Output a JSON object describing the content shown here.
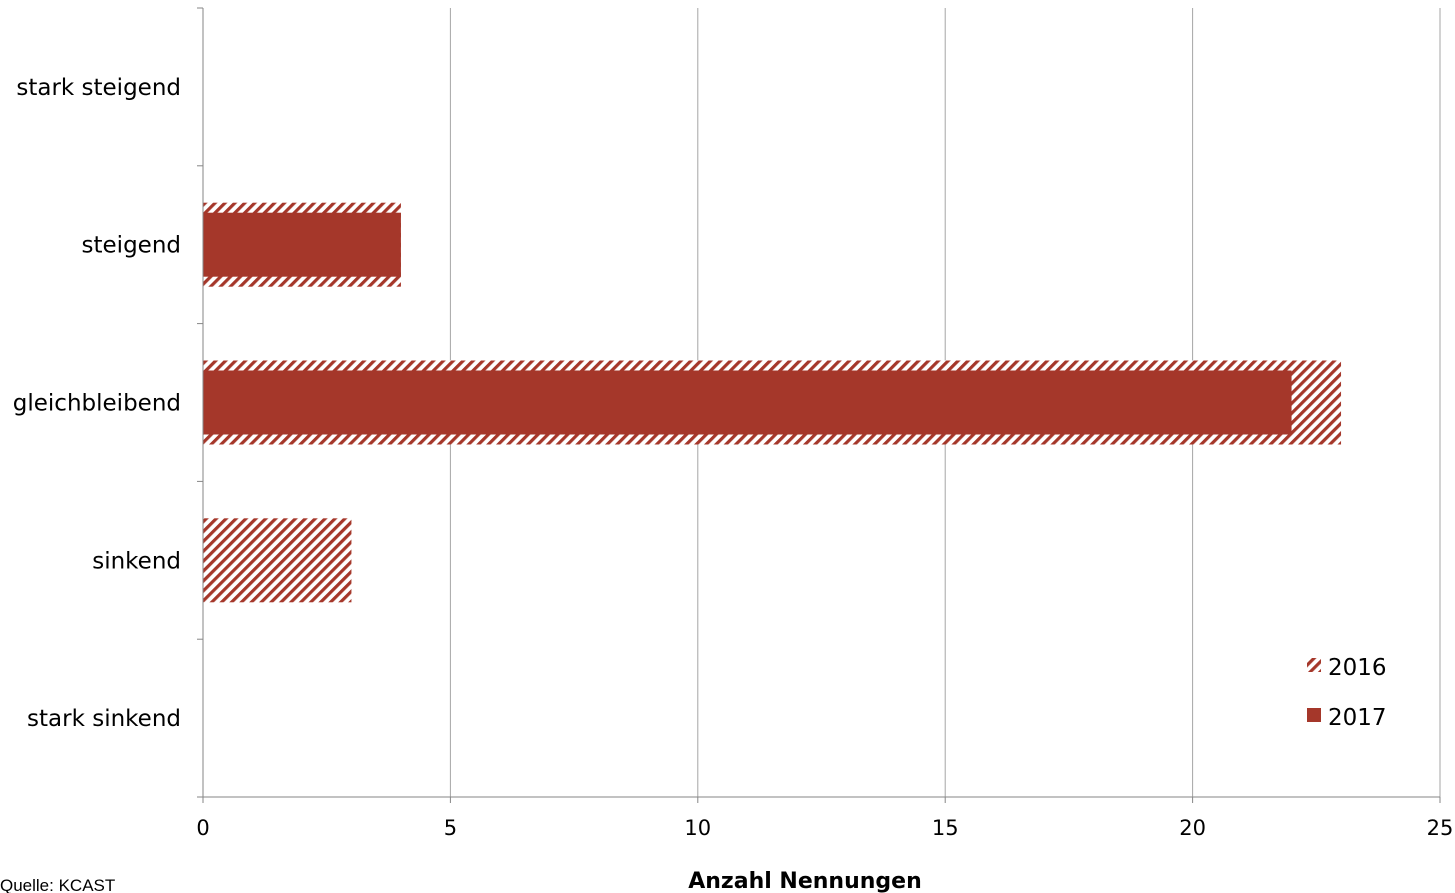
{
  "chart_data": {
    "type": "bar",
    "orientation": "horizontal",
    "categories": [
      "stark steigend",
      "steigend",
      "gleichbleibend",
      "sinkend",
      "stark sinkend"
    ],
    "series": [
      {
        "name": "2016",
        "values": [
          0,
          4,
          23,
          3,
          0
        ],
        "color": "#a5372a",
        "pattern": "diagonal-hatch"
      },
      {
        "name": "2017",
        "values": [
          0,
          4,
          22,
          0,
          0
        ],
        "color": "#a5372a",
        "pattern": "solid"
      }
    ],
    "xlabel": "Anzahl Nennungen",
    "xlim": [
      0,
      25
    ],
    "xticks": [
      0,
      5,
      10,
      15,
      20,
      25
    ],
    "grid": "vertical",
    "legend_position": "bottom-right"
  },
  "source_note": "Quelle: KCAST"
}
